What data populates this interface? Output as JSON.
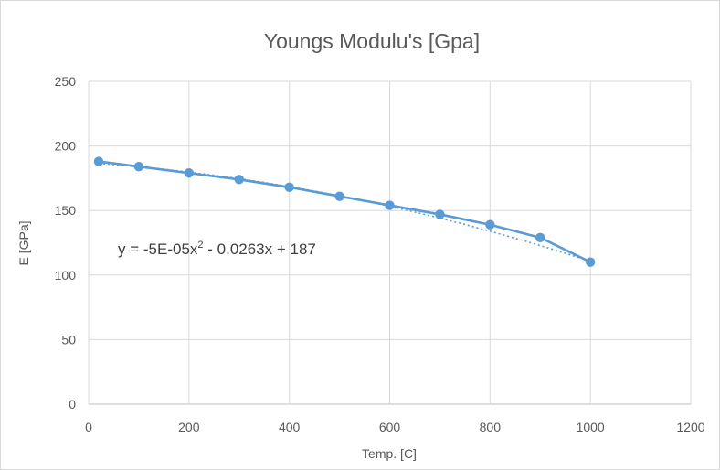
{
  "chart_data": {
    "type": "scatter",
    "title": "Youngs Modulu's  [Gpa]",
    "xlabel": "Temp. [C]",
    "ylabel": "E [GPa]",
    "xlim": [
      0,
      1200
    ],
    "ylim": [
      0,
      250
    ],
    "xticks": [
      0,
      200,
      400,
      600,
      800,
      1000,
      1200
    ],
    "yticks": [
      0,
      50,
      100,
      150,
      200,
      250
    ],
    "grid": true,
    "series": [
      {
        "x": [
          20,
          100,
          200,
          300,
          400,
          500,
          600,
          700,
          800,
          900,
          1000
        ],
        "values": [
          188,
          184,
          179,
          174,
          168,
          161,
          154,
          147,
          139,
          129,
          110
        ],
        "color": "#5b9bd5",
        "markers": true,
        "line": "solid"
      }
    ],
    "trendline": {
      "type": "polynomial-2",
      "coefficients": [
        -5e-05,
        -0.0263,
        187
      ],
      "label": "y = -5E-05x² - 0.0263x + 187",
      "color": "#5b9bd5",
      "style": "dotted"
    }
  }
}
